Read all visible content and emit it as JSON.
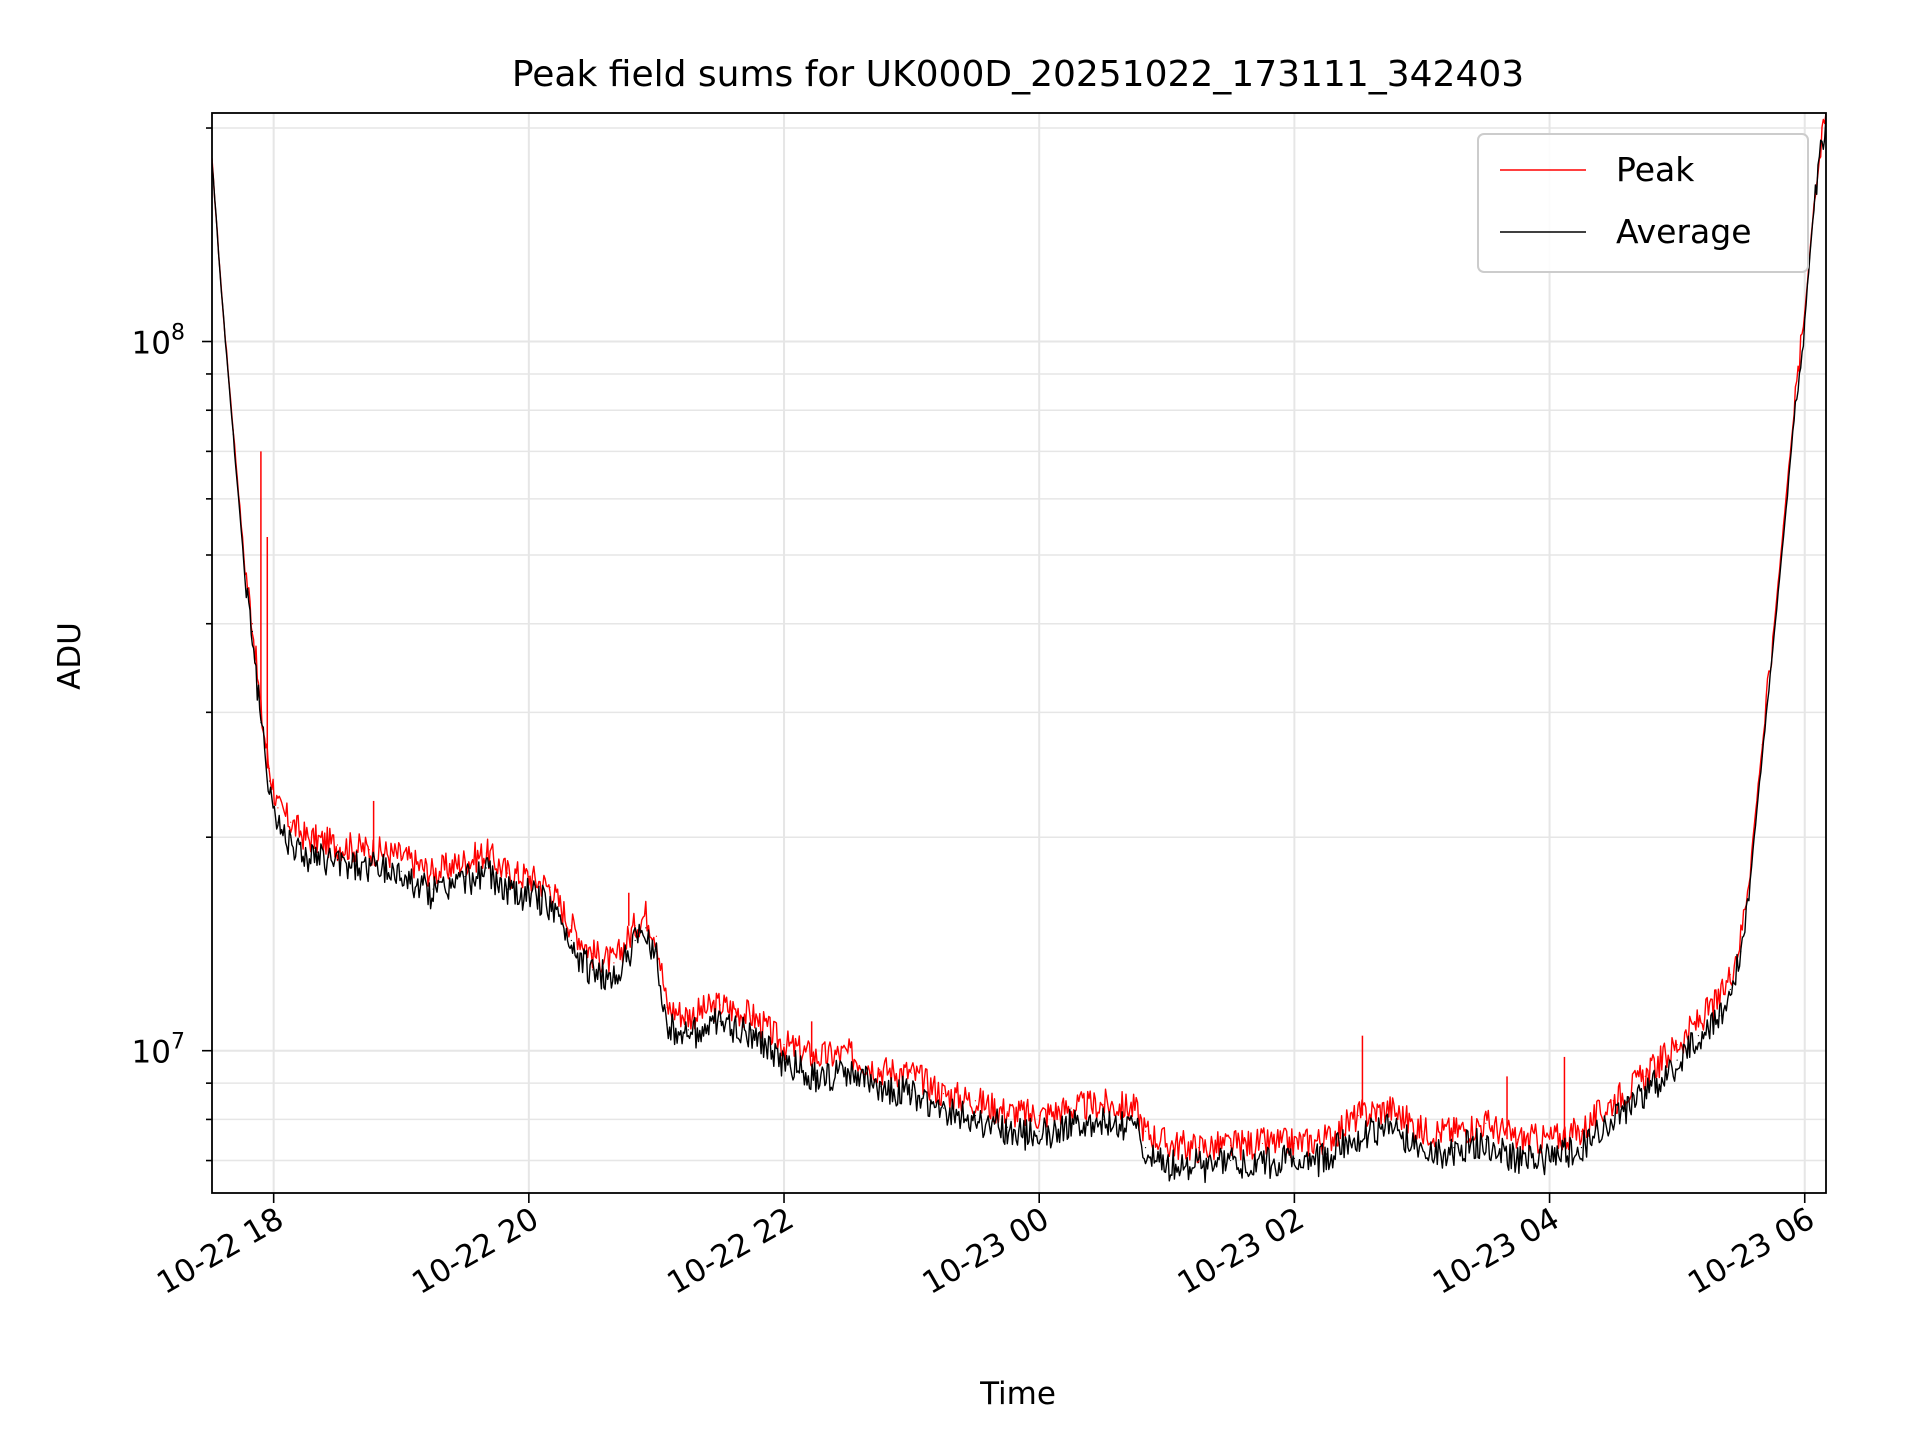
{
  "chart_data": {
    "type": "line",
    "title": "Peak field sums for UK000D_20251022_173111_342403",
    "xlabel": "Time",
    "ylabel": "ADU",
    "y_scale": "log",
    "xlim": [
      "2025-10-22 17:31",
      "2025-10-23 06:10"
    ],
    "ylim": [
      6300000,
      210000000
    ],
    "x_ticks": [
      {
        "value": "2025-10-22 18:00",
        "label": "10-22 18"
      },
      {
        "value": "2025-10-22 20:00",
        "label": "10-22 20"
      },
      {
        "value": "2025-10-22 22:00",
        "label": "10-22 22"
      },
      {
        "value": "2025-10-23 00:00",
        "label": "10-23 00"
      },
      {
        "value": "2025-10-23 02:00",
        "label": "10-23 02"
      },
      {
        "value": "2025-10-23 04:00",
        "label": "10-23 04"
      },
      {
        "value": "2025-10-23 06:00",
        "label": "10-23 06"
      }
    ],
    "y_ticks": [
      {
        "value": 10000000,
        "base": "10",
        "exp": "7"
      },
      {
        "value": 100000000,
        "base": "10",
        "exp": "8"
      }
    ],
    "grid": true,
    "legend": {
      "location": "top-right"
    },
    "series": [
      {
        "name": "Peak",
        "color": "#ff0000",
        "points": [
          [
            "2025-10-22 17:31",
            180000000
          ],
          [
            "2025-10-22 17:36",
            112000000
          ],
          [
            "2025-10-22 17:41",
            75000000
          ],
          [
            "2025-10-22 17:46",
            50000000
          ],
          [
            "2025-10-22 17:50",
            40000000
          ],
          [
            "2025-10-22 17:54",
            30000000
          ],
          [
            "2025-10-22 17:58",
            25000000
          ],
          [
            "2025-10-22 18:02",
            22000000
          ],
          [
            "2025-10-22 18:08",
            21000000
          ],
          [
            "2025-10-22 18:15",
            20000000
          ],
          [
            "2025-10-22 18:30",
            19500000
          ],
          [
            "2025-10-22 18:45",
            19200000
          ],
          [
            "2025-10-22 19:00",
            18800000
          ],
          [
            "2025-10-22 19:15",
            17800000
          ],
          [
            "2025-10-22 19:30",
            18500000
          ],
          [
            "2025-10-22 19:40",
            19000000
          ],
          [
            "2025-10-22 19:50",
            17800000
          ],
          [
            "2025-10-22 20:00",
            17600000
          ],
          [
            "2025-10-22 20:10",
            17000000
          ],
          [
            "2025-10-22 20:20",
            15000000
          ],
          [
            "2025-10-22 20:30",
            13700000
          ],
          [
            "2025-10-22 20:40",
            13300000
          ],
          [
            "2025-10-22 20:50",
            15000000
          ],
          [
            "2025-10-22 20:55",
            15600000
          ],
          [
            "2025-10-22 21:00",
            14500000
          ],
          [
            "2025-10-22 21:05",
            11500000
          ],
          [
            "2025-10-22 21:15",
            11200000
          ],
          [
            "2025-10-22 21:30",
            11600000
          ],
          [
            "2025-10-22 21:45",
            11200000
          ],
          [
            "2025-10-22 22:00",
            10200000
          ],
          [
            "2025-10-22 22:15",
            9800000
          ],
          [
            "2025-10-22 22:30",
            9900000
          ],
          [
            "2025-10-22 22:45",
            9400000
          ],
          [
            "2025-10-22 23:00",
            9300000
          ],
          [
            "2025-10-22 23:15",
            8700000
          ],
          [
            "2025-10-22 23:30",
            8500000
          ],
          [
            "2025-10-22 23:45",
            8200000
          ],
          [
            "2025-10-23 00:00",
            8100000
          ],
          [
            "2025-10-23 00:15",
            8300000
          ],
          [
            "2025-10-23 00:30",
            8400000
          ],
          [
            "2025-10-23 00:45",
            8300000
          ],
          [
            "2025-10-23 00:50",
            7700000
          ],
          [
            "2025-10-23 01:00",
            7400000
          ],
          [
            "2025-10-23 01:15",
            7300000
          ],
          [
            "2025-10-23 01:30",
            7350000
          ],
          [
            "2025-10-23 01:45",
            7400000
          ],
          [
            "2025-10-23 02:00",
            7400000
          ],
          [
            "2025-10-23 02:15",
            7500000
          ],
          [
            "2025-10-23 02:30",
            8100000
          ],
          [
            "2025-10-23 02:45",
            8300000
          ],
          [
            "2025-10-23 03:00",
            7700000
          ],
          [
            "2025-10-23 03:15",
            7700000
          ],
          [
            "2025-10-23 03:30",
            7900000
          ],
          [
            "2025-10-23 03:45",
            7500000
          ],
          [
            "2025-10-23 04:00",
            7500000
          ],
          [
            "2025-10-23 04:15",
            7700000
          ],
          [
            "2025-10-23 04:30",
            8500000
          ],
          [
            "2025-10-23 04:45",
            9200000
          ],
          [
            "2025-10-23 05:00",
            10200000
          ],
          [
            "2025-10-23 05:10",
            11000000
          ],
          [
            "2025-10-23 05:20",
            11800000
          ],
          [
            "2025-10-23 05:25",
            12800000
          ],
          [
            "2025-10-23 05:30",
            14500000
          ],
          [
            "2025-10-23 05:35",
            19000000
          ],
          [
            "2025-10-23 05:40",
            27000000
          ],
          [
            "2025-10-23 05:45",
            38000000
          ],
          [
            "2025-10-23 05:50",
            55000000
          ],
          [
            "2025-10-23 05:55",
            80000000
          ],
          [
            "2025-10-23 06:00",
            110000000
          ],
          [
            "2025-10-23 06:05",
            165000000
          ],
          [
            "2025-10-23 06:10",
            210000000
          ]
        ],
        "spikes": [
          [
            "2025-10-22 17:54",
            70000000
          ],
          [
            "2025-10-22 17:57",
            53000000
          ],
          [
            "2025-10-22 18:47",
            22500000
          ],
          [
            "2025-10-22 20:47",
            16700000
          ],
          [
            "2025-10-22 22:13",
            11000000
          ],
          [
            "2025-10-23 02:32",
            10500000
          ],
          [
            "2025-10-23 03:40",
            9200000
          ],
          [
            "2025-10-23 04:07",
            9800000
          ]
        ]
      },
      {
        "name": "Average",
        "color": "#000000",
        "points": [
          [
            "2025-10-22 17:31",
            180000000
          ],
          [
            "2025-10-22 17:36",
            112000000
          ],
          [
            "2025-10-22 17:41",
            74000000
          ],
          [
            "2025-10-22 17:46",
            49000000
          ],
          [
            "2025-10-22 17:50",
            39000000
          ],
          [
            "2025-10-22 17:54",
            29000000
          ],
          [
            "2025-10-22 17:58",
            24000000
          ],
          [
            "2025-10-22 18:02",
            21000000
          ],
          [
            "2025-10-22 18:08",
            20000000
          ],
          [
            "2025-10-22 18:15",
            19000000
          ],
          [
            "2025-10-22 18:30",
            18600000
          ],
          [
            "2025-10-22 18:45",
            18300000
          ],
          [
            "2025-10-22 19:00",
            17900000
          ],
          [
            "2025-10-22 19:15",
            16900000
          ],
          [
            "2025-10-22 19:30",
            17600000
          ],
          [
            "2025-10-22 19:40",
            18100000
          ],
          [
            "2025-10-22 19:50",
            16900000
          ],
          [
            "2025-10-22 20:00",
            16700000
          ],
          [
            "2025-10-22 20:10",
            16200000
          ],
          [
            "2025-10-22 20:20",
            14300000
          ],
          [
            "2025-10-22 20:30",
            13000000
          ],
          [
            "2025-10-22 20:40",
            12700000
          ],
          [
            "2025-10-22 20:50",
            14300000
          ],
          [
            "2025-10-22 20:55",
            14900000
          ],
          [
            "2025-10-22 21:00",
            13800000
          ],
          [
            "2025-10-22 21:05",
            10900000
          ],
          [
            "2025-10-22 21:15",
            10700000
          ],
          [
            "2025-10-22 21:30",
            11000000
          ],
          [
            "2025-10-22 21:45",
            10700000
          ],
          [
            "2025-10-22 22:00",
            9700000
          ],
          [
            "2025-10-22 22:15",
            9300000
          ],
          [
            "2025-10-22 22:30",
            9400000
          ],
          [
            "2025-10-22 22:45",
            8900000
          ],
          [
            "2025-10-22 23:00",
            8800000
          ],
          [
            "2025-10-22 23:15",
            8300000
          ],
          [
            "2025-10-22 23:30",
            8100000
          ],
          [
            "2025-10-22 23:45",
            7800000
          ],
          [
            "2025-10-23 00:00",
            7700000
          ],
          [
            "2025-10-23 00:15",
            7900000
          ],
          [
            "2025-10-23 00:30",
            8000000
          ],
          [
            "2025-10-23 00:45",
            7900000
          ],
          [
            "2025-10-23 00:50",
            7300000
          ],
          [
            "2025-10-23 01:00",
            7000000
          ],
          [
            "2025-10-23 01:15",
            6950000
          ],
          [
            "2025-10-23 01:30",
            7000000
          ],
          [
            "2025-10-23 01:45",
            7050000
          ],
          [
            "2025-10-23 02:00",
            7050000
          ],
          [
            "2025-10-23 02:15",
            7150000
          ],
          [
            "2025-10-23 02:30",
            7700000
          ],
          [
            "2025-10-23 02:45",
            7900000
          ],
          [
            "2025-10-23 03:00",
            7300000
          ],
          [
            "2025-10-23 03:15",
            7300000
          ],
          [
            "2025-10-23 03:30",
            7500000
          ],
          [
            "2025-10-23 03:45",
            7100000
          ],
          [
            "2025-10-23 04:00",
            7100000
          ],
          [
            "2025-10-23 04:15",
            7300000
          ],
          [
            "2025-10-23 04:30",
            8100000
          ],
          [
            "2025-10-23 04:45",
            8800000
          ],
          [
            "2025-10-23 05:00",
            9700000
          ],
          [
            "2025-10-23 05:10",
            10500000
          ],
          [
            "2025-10-23 05:20",
            11200000
          ],
          [
            "2025-10-23 05:25",
            12200000
          ],
          [
            "2025-10-23 05:30",
            13800000
          ],
          [
            "2025-10-23 05:35",
            18300000
          ],
          [
            "2025-10-23 05:40",
            26000000
          ],
          [
            "2025-10-23 05:45",
            37000000
          ],
          [
            "2025-10-23 05:50",
            53000000
          ],
          [
            "2025-10-23 05:55",
            78000000
          ],
          [
            "2025-10-23 06:00",
            108000000
          ],
          [
            "2025-10-23 06:05",
            163000000
          ],
          [
            "2025-10-23 06:10",
            208000000
          ]
        ]
      }
    ]
  }
}
